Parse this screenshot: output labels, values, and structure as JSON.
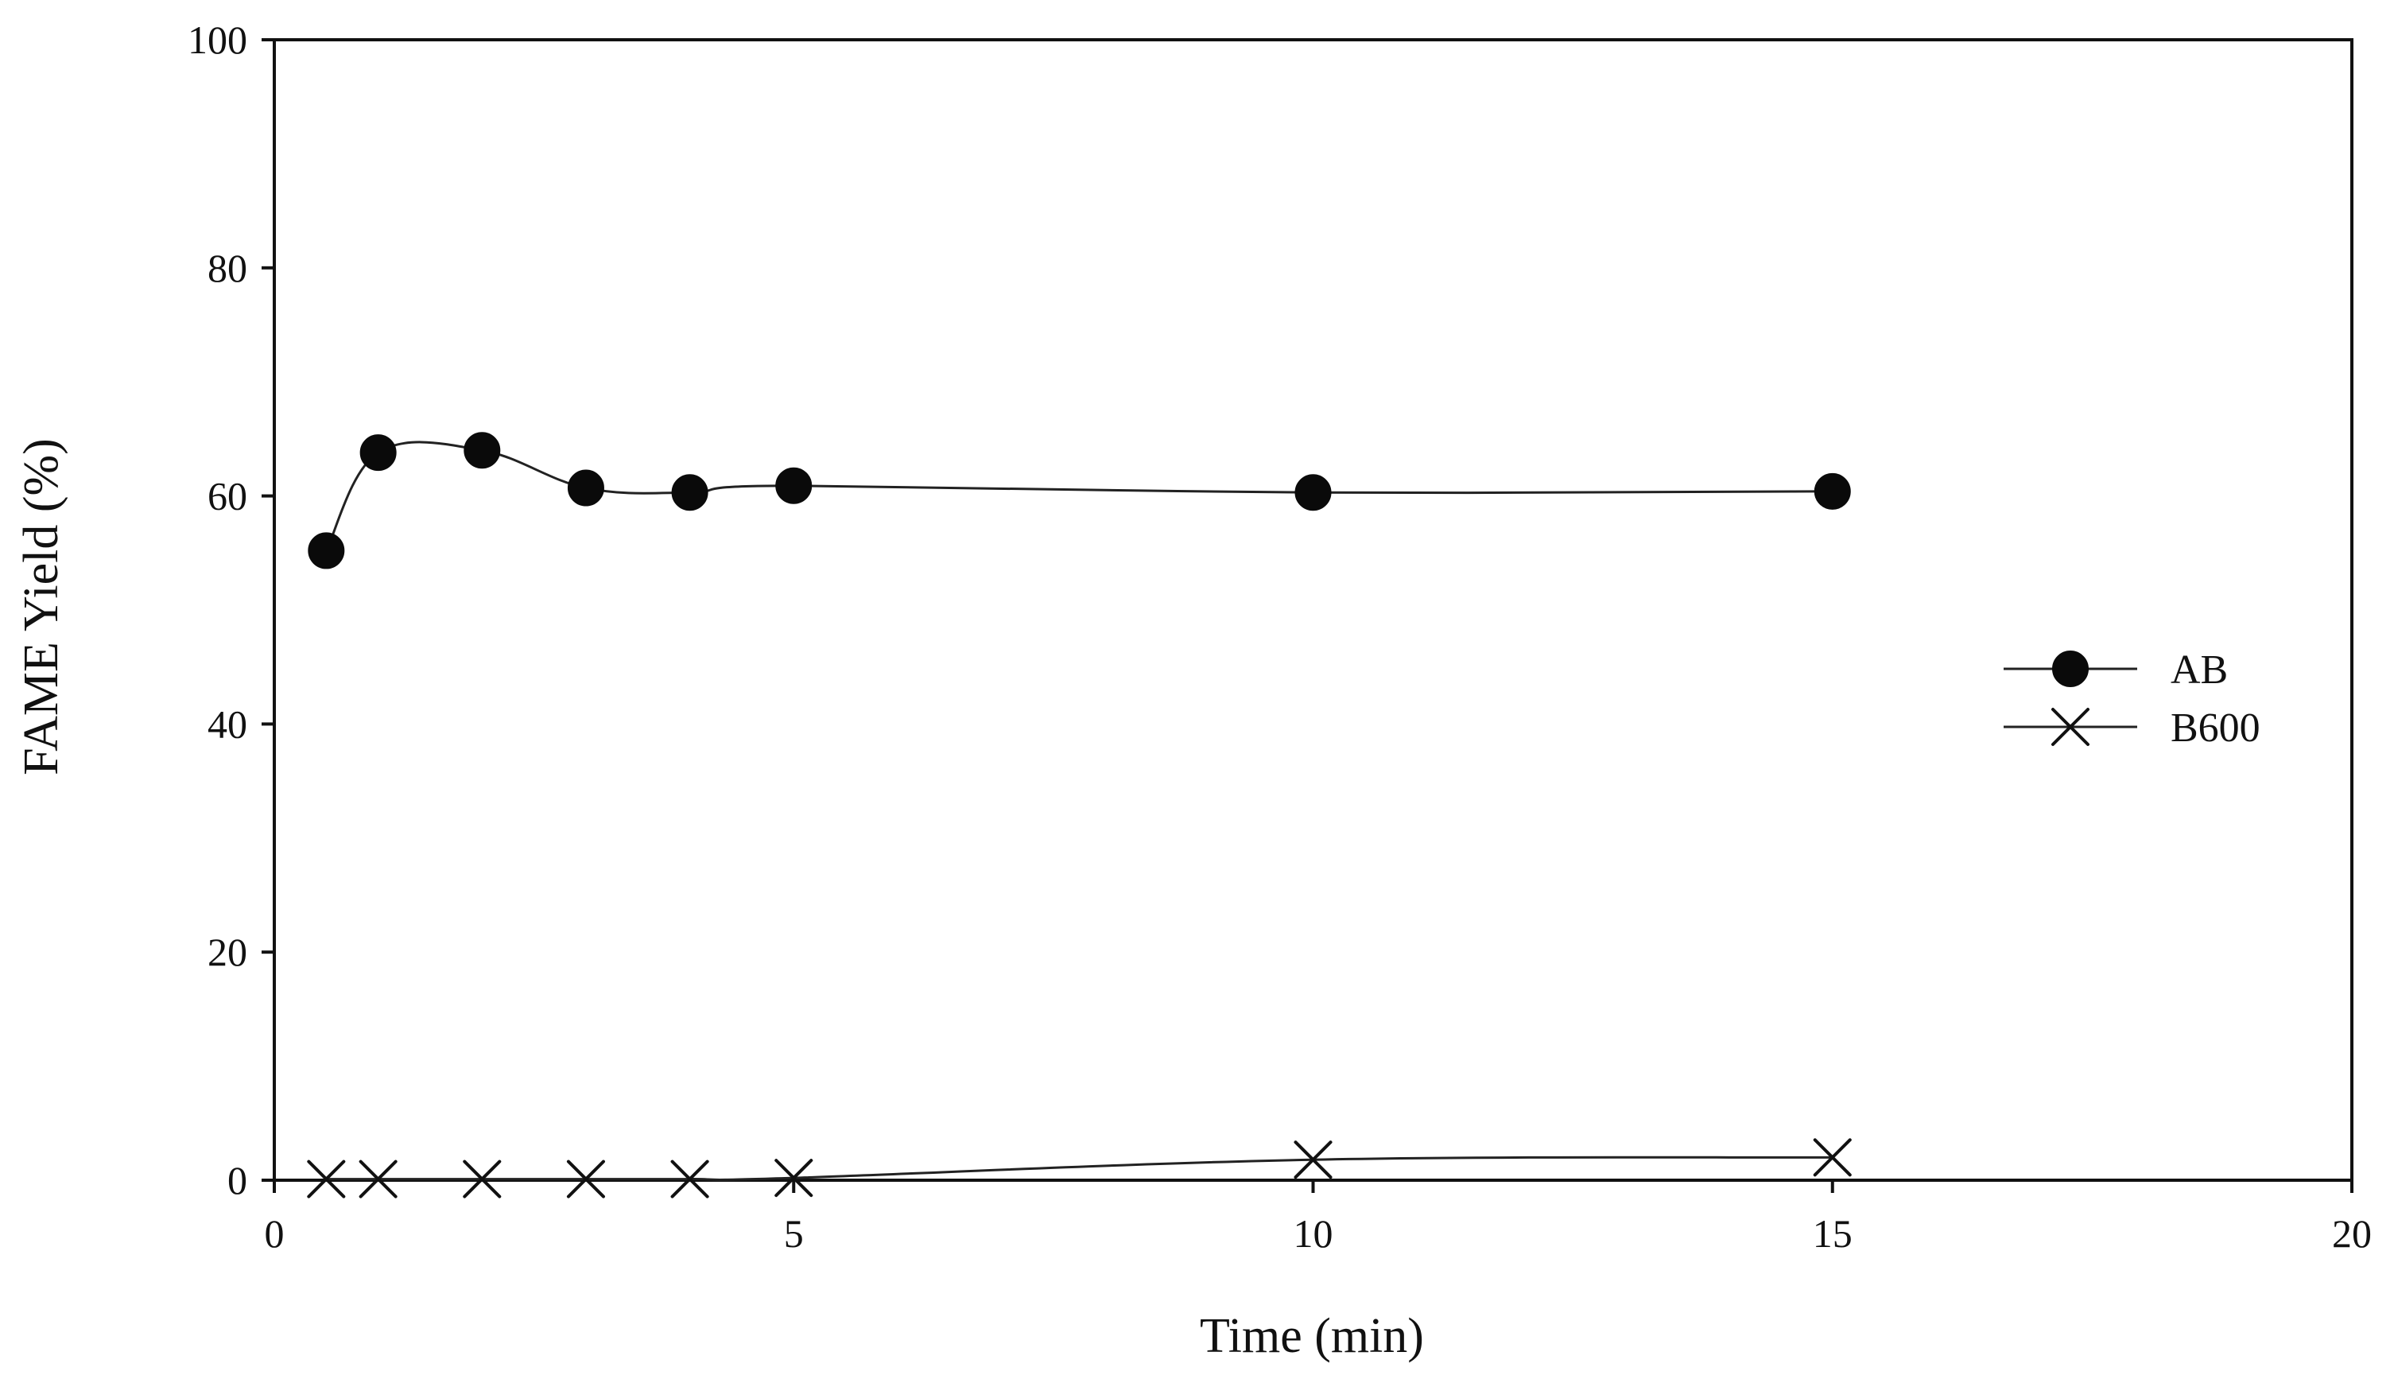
{
  "chart_data": {
    "type": "line",
    "xlabel": "Time (min)",
    "ylabel": "FAME Yield (%)",
    "xlim": [
      0,
      20
    ],
    "ylim": [
      0,
      100
    ],
    "x_ticks": [
      0,
      5,
      10,
      15,
      20
    ],
    "y_ticks": [
      0,
      20,
      40,
      60,
      80,
      100
    ],
    "x_tick_labels": [
      "0",
      "5",
      "10",
      "15",
      "20"
    ],
    "y_tick_labels": [
      "0",
      "20",
      "40",
      "60",
      "80",
      "100"
    ],
    "grid": false,
    "legend_position": "right",
    "series": [
      {
        "name": "AB",
        "marker": "filled-circle",
        "color": "#0a0a0a",
        "x": [
          0.5,
          1,
          2,
          3,
          4,
          5,
          10,
          15
        ],
        "y": [
          55.2,
          63.8,
          64.0,
          60.7,
          60.3,
          60.9,
          60.3,
          60.4
        ]
      },
      {
        "name": "B600",
        "marker": "x-cross",
        "color": "#111111",
        "x": [
          0.5,
          1,
          2,
          3,
          4,
          5,
          10,
          15
        ],
        "y": [
          0.1,
          0.1,
          0.1,
          0.1,
          0.1,
          0.2,
          1.8,
          2.0
        ]
      }
    ]
  }
}
